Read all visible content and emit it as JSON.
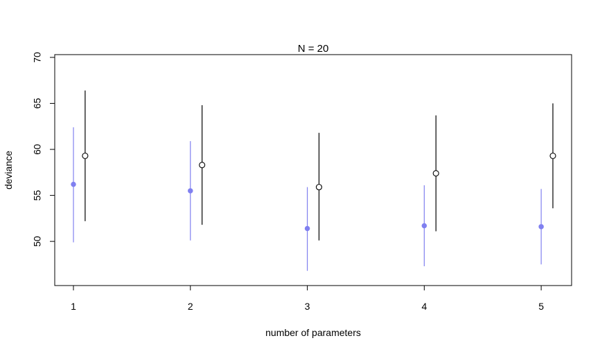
{
  "chart_data": {
    "type": "scatter",
    "title": "N = 20",
    "xlabel": "number of parameters",
    "ylabel": "deviance",
    "x_ticks": [
      "1",
      "2",
      "3",
      "4",
      "5"
    ],
    "y_ticks": [
      "50",
      "55",
      "60",
      "65",
      "70"
    ],
    "xlim": [
      0.84,
      5.26
    ],
    "ylim": [
      45.2,
      70.3
    ],
    "grid": false,
    "legend": "none",
    "series": [
      {
        "color": "#8080f0",
        "marker": "filled-circle",
        "x": [
          1,
          2,
          3,
          4,
          5
        ],
        "y": [
          56.2,
          55.5,
          51.4,
          51.7,
          51.6
        ],
        "lower": [
          49.9,
          50.1,
          46.8,
          47.3,
          47.5
        ],
        "upper": [
          62.4,
          60.9,
          55.9,
          56.1,
          55.7
        ]
      },
      {
        "color": "#000000",
        "marker": "open-circle",
        "x": [
          1.1,
          2.1,
          3.1,
          4.1,
          5.1
        ],
        "y": [
          59.3,
          58.3,
          55.9,
          57.4,
          59.3
        ],
        "lower": [
          52.2,
          51.8,
          50.1,
          51.1,
          53.6
        ],
        "upper": [
          66.4,
          64.8,
          61.8,
          63.7,
          65.0
        ]
      }
    ]
  }
}
